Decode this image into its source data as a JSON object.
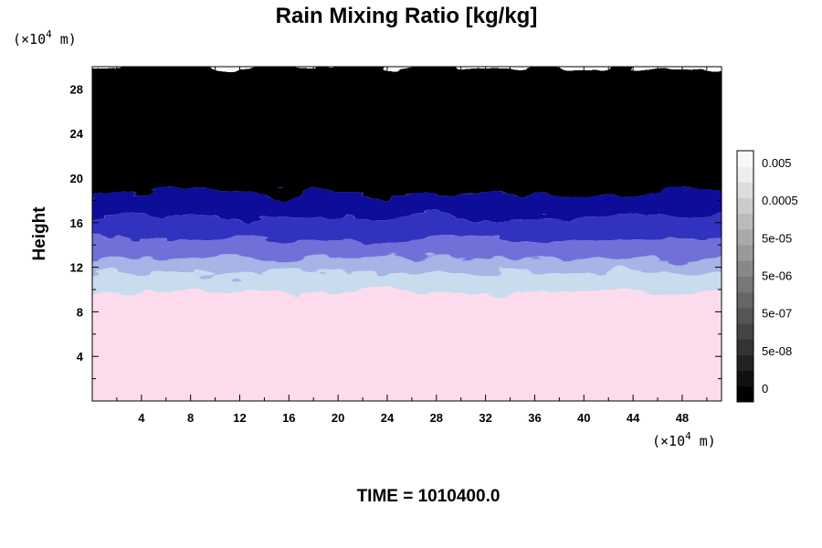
{
  "chart_data": {
    "type": "heatmap",
    "title": "Rain Mixing Ratio [kg/kg]",
    "ylabel": "Height",
    "x_unit": "(×10",
    "x_unit_exp": "4",
    "x_unit_tail": " m)",
    "y_unit": "(×10",
    "y_unit_exp": "4",
    "y_unit_tail": " m)",
    "xlim": [
      0,
      51.2
    ],
    "ylim": [
      0,
      30
    ],
    "x_ticks": [
      "4",
      "8",
      "12",
      "16",
      "20",
      "24",
      "28",
      "32",
      "36",
      "40",
      "44",
      "48"
    ],
    "y_ticks": [
      "4",
      "8",
      "12",
      "16",
      "20",
      "24",
      "28"
    ],
    "x_tick_values": [
      4,
      8,
      12,
      16,
      20,
      24,
      28,
      32,
      36,
      40,
      44,
      48
    ],
    "y_tick_values": [
      4,
      8,
      12,
      16,
      20,
      24,
      28
    ],
    "layers": [
      {
        "y_from": 0,
        "y_to": 9.8,
        "color": "#fcdcec"
      },
      {
        "y_from": 9.8,
        "y_to": 11.5,
        "color": "#c8dcee"
      },
      {
        "y_from": 11.5,
        "y_to": 12.8,
        "color": "#a6b4e6"
      },
      {
        "y_from": 12.8,
        "y_to": 14.5,
        "color": "#7070d8"
      },
      {
        "y_from": 14.5,
        "y_to": 16.5,
        "color": "#3030c0"
      },
      {
        "y_from": 16.5,
        "y_to": 18.6,
        "color": "#10109a"
      },
      {
        "y_from": 18.6,
        "y_to": 30,
        "color": "#000000"
      }
    ],
    "colorbar": {
      "labels": [
        "0.005",
        "0.0005",
        "5e-05",
        "5e-06",
        "5e-07",
        "5e-08",
        "0"
      ],
      "colors": [
        "#000000",
        "#111111",
        "#222222",
        "#333333",
        "#444444",
        "#555555",
        "#666666",
        "#777777",
        "#888888",
        "#999999",
        "#aaaaaa",
        "#bbbbbb",
        "#cccccc",
        "#dddddd",
        "#eeeeee",
        "#f8f8f8"
      ]
    },
    "footer": "TIME = 1010400.0"
  }
}
